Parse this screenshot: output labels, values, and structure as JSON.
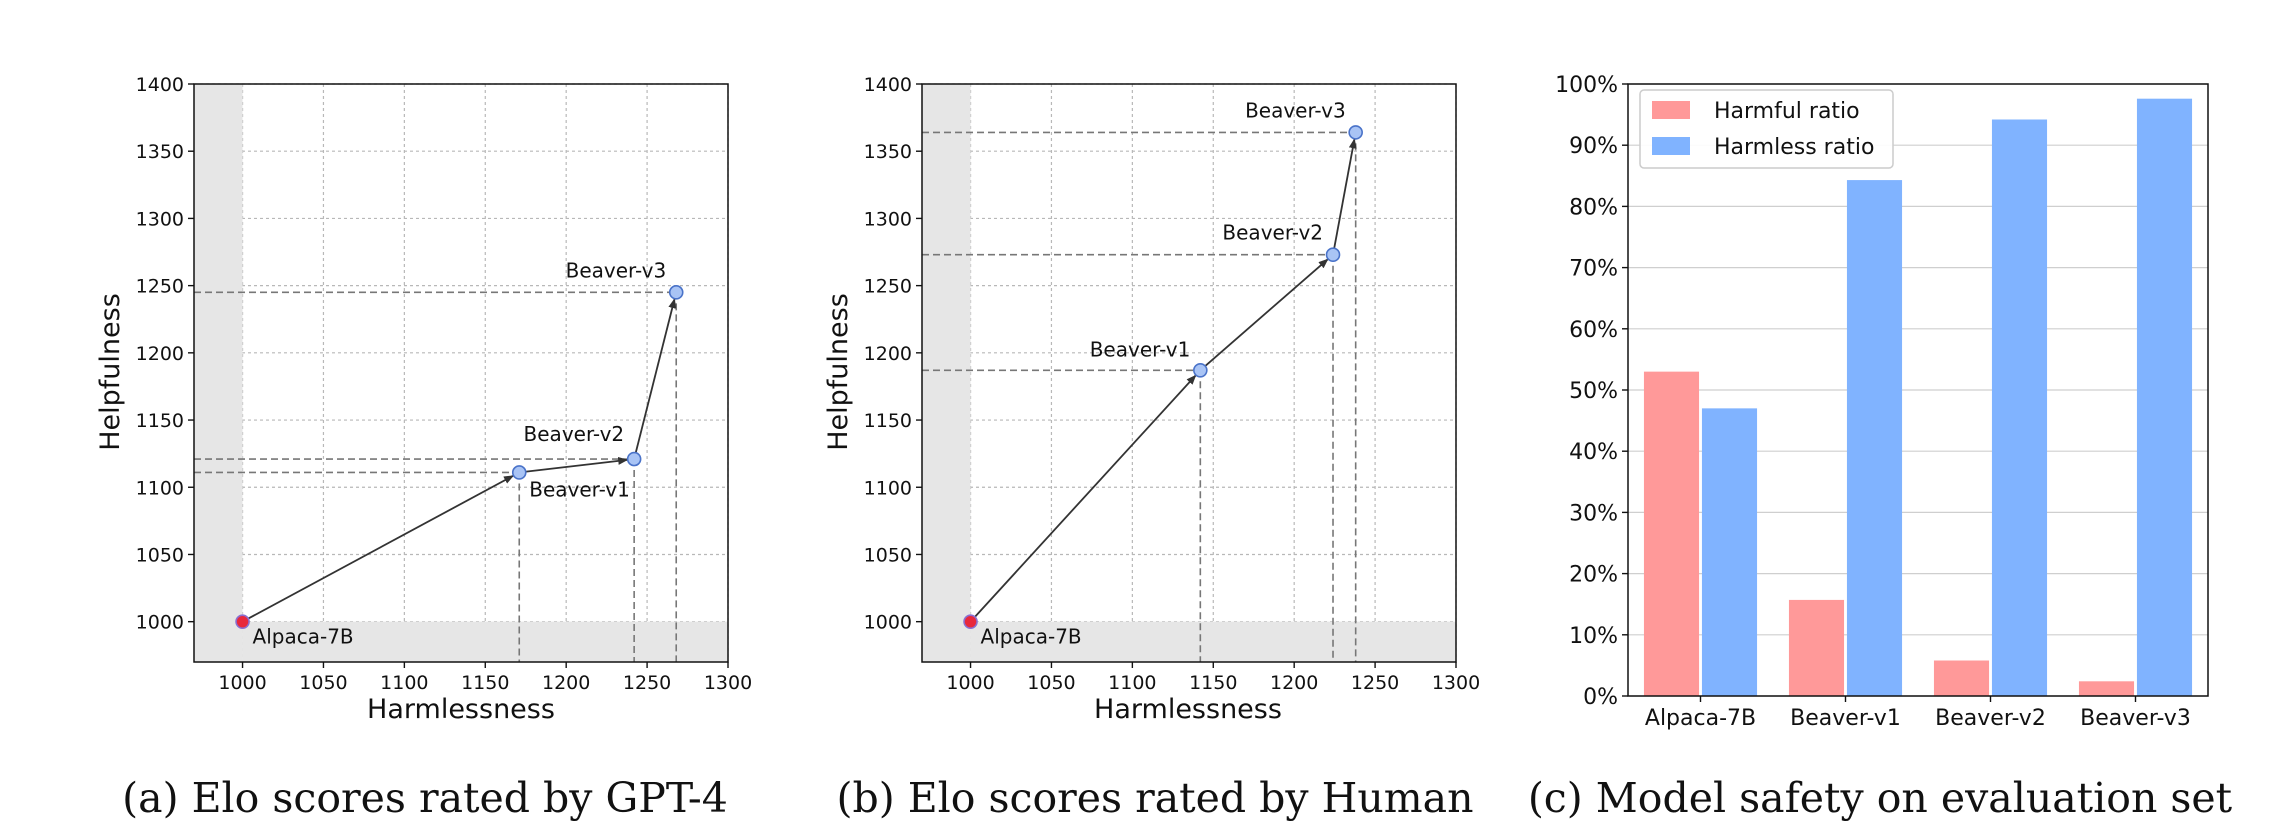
{
  "chart_data": [
    {
      "type": "scatter",
      "xlabel": "Harmlessness",
      "ylabel": "Helpfulness",
      "xlim": [
        970,
        1300
      ],
      "ylim": [
        970,
        1400
      ],
      "xticks": [
        "1000",
        "1050",
        "1100",
        "1150",
        "1200",
        "1250",
        "1300"
      ],
      "yticks": [
        "1000",
        "1050",
        "1100",
        "1150",
        "1200",
        "1250",
        "1300",
        "1350",
        "1400"
      ],
      "grid": true,
      "points": [
        {
          "label": "Alpaca-7B",
          "x": 1000,
          "y": 1000
        },
        {
          "label": "Beaver-v1",
          "x": 1171,
          "y": 1111
        },
        {
          "label": "Beaver-v2",
          "x": 1242,
          "y": 1121
        },
        {
          "label": "Beaver-v3",
          "x": 1268,
          "y": 1245
        }
      ],
      "caption": "(a) Elo scores rated by GPT-4"
    },
    {
      "type": "scatter",
      "xlabel": "Harmlessness",
      "ylabel": "Helpfulness",
      "xlim": [
        970,
        1300
      ],
      "ylim": [
        970,
        1400
      ],
      "xticks": [
        "1000",
        "1050",
        "1100",
        "1150",
        "1200",
        "1250",
        "1300"
      ],
      "yticks": [
        "1000",
        "1050",
        "1100",
        "1150",
        "1200",
        "1250",
        "1300",
        "1350",
        "1400"
      ],
      "grid": true,
      "points": [
        {
          "label": "Alpaca-7B",
          "x": 1000,
          "y": 1000
        },
        {
          "label": "Beaver-v1",
          "x": 1142,
          "y": 1187
        },
        {
          "label": "Beaver-v2",
          "x": 1224,
          "y": 1273
        },
        {
          "label": "Beaver-v3",
          "x": 1238,
          "y": 1364
        }
      ],
      "caption": "(b) Elo scores rated by Human"
    },
    {
      "type": "bar",
      "categories": [
        "Alpaca-7B",
        "Beaver-v1",
        "Beaver-v2",
        "Beaver-v3"
      ],
      "series": [
        {
          "name": "Harmful ratio",
          "color": "#ff9999",
          "values": [
            53,
            15.7,
            5.8,
            2.4
          ]
        },
        {
          "name": "Harmless ratio",
          "color": "#80b3ff",
          "values": [
            47,
            84.3,
            94.2,
            97.6
          ]
        }
      ],
      "ylim": [
        0,
        100
      ],
      "yticks": [
        "0%",
        "10%",
        "20%",
        "30%",
        "40%",
        "50%",
        "60%",
        "70%",
        "80%",
        "90%",
        "100%"
      ],
      "legend": "top-left",
      "grid": true,
      "caption": "(c) Model safety on evaluation set"
    }
  ]
}
